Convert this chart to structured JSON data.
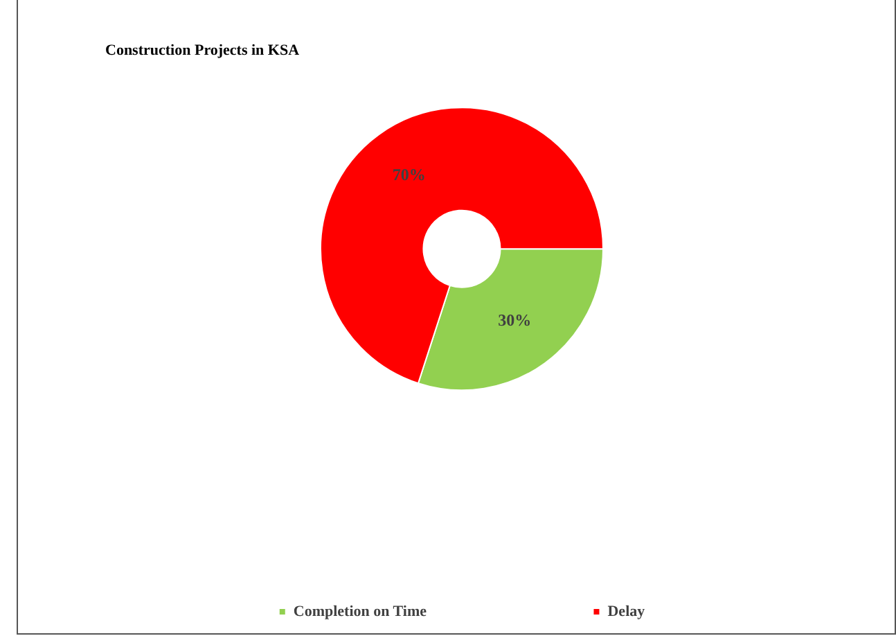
{
  "chart_data": {
    "type": "donut",
    "title": "Construction Projects in KSA",
    "categories": [
      "Completion on Time",
      "Delay"
    ],
    "values": [
      30,
      70
    ],
    "colors": [
      "#92d050",
      "#ff0000"
    ],
    "value_labels": [
      "30%",
      "70%"
    ],
    "legend": "bottom"
  }
}
